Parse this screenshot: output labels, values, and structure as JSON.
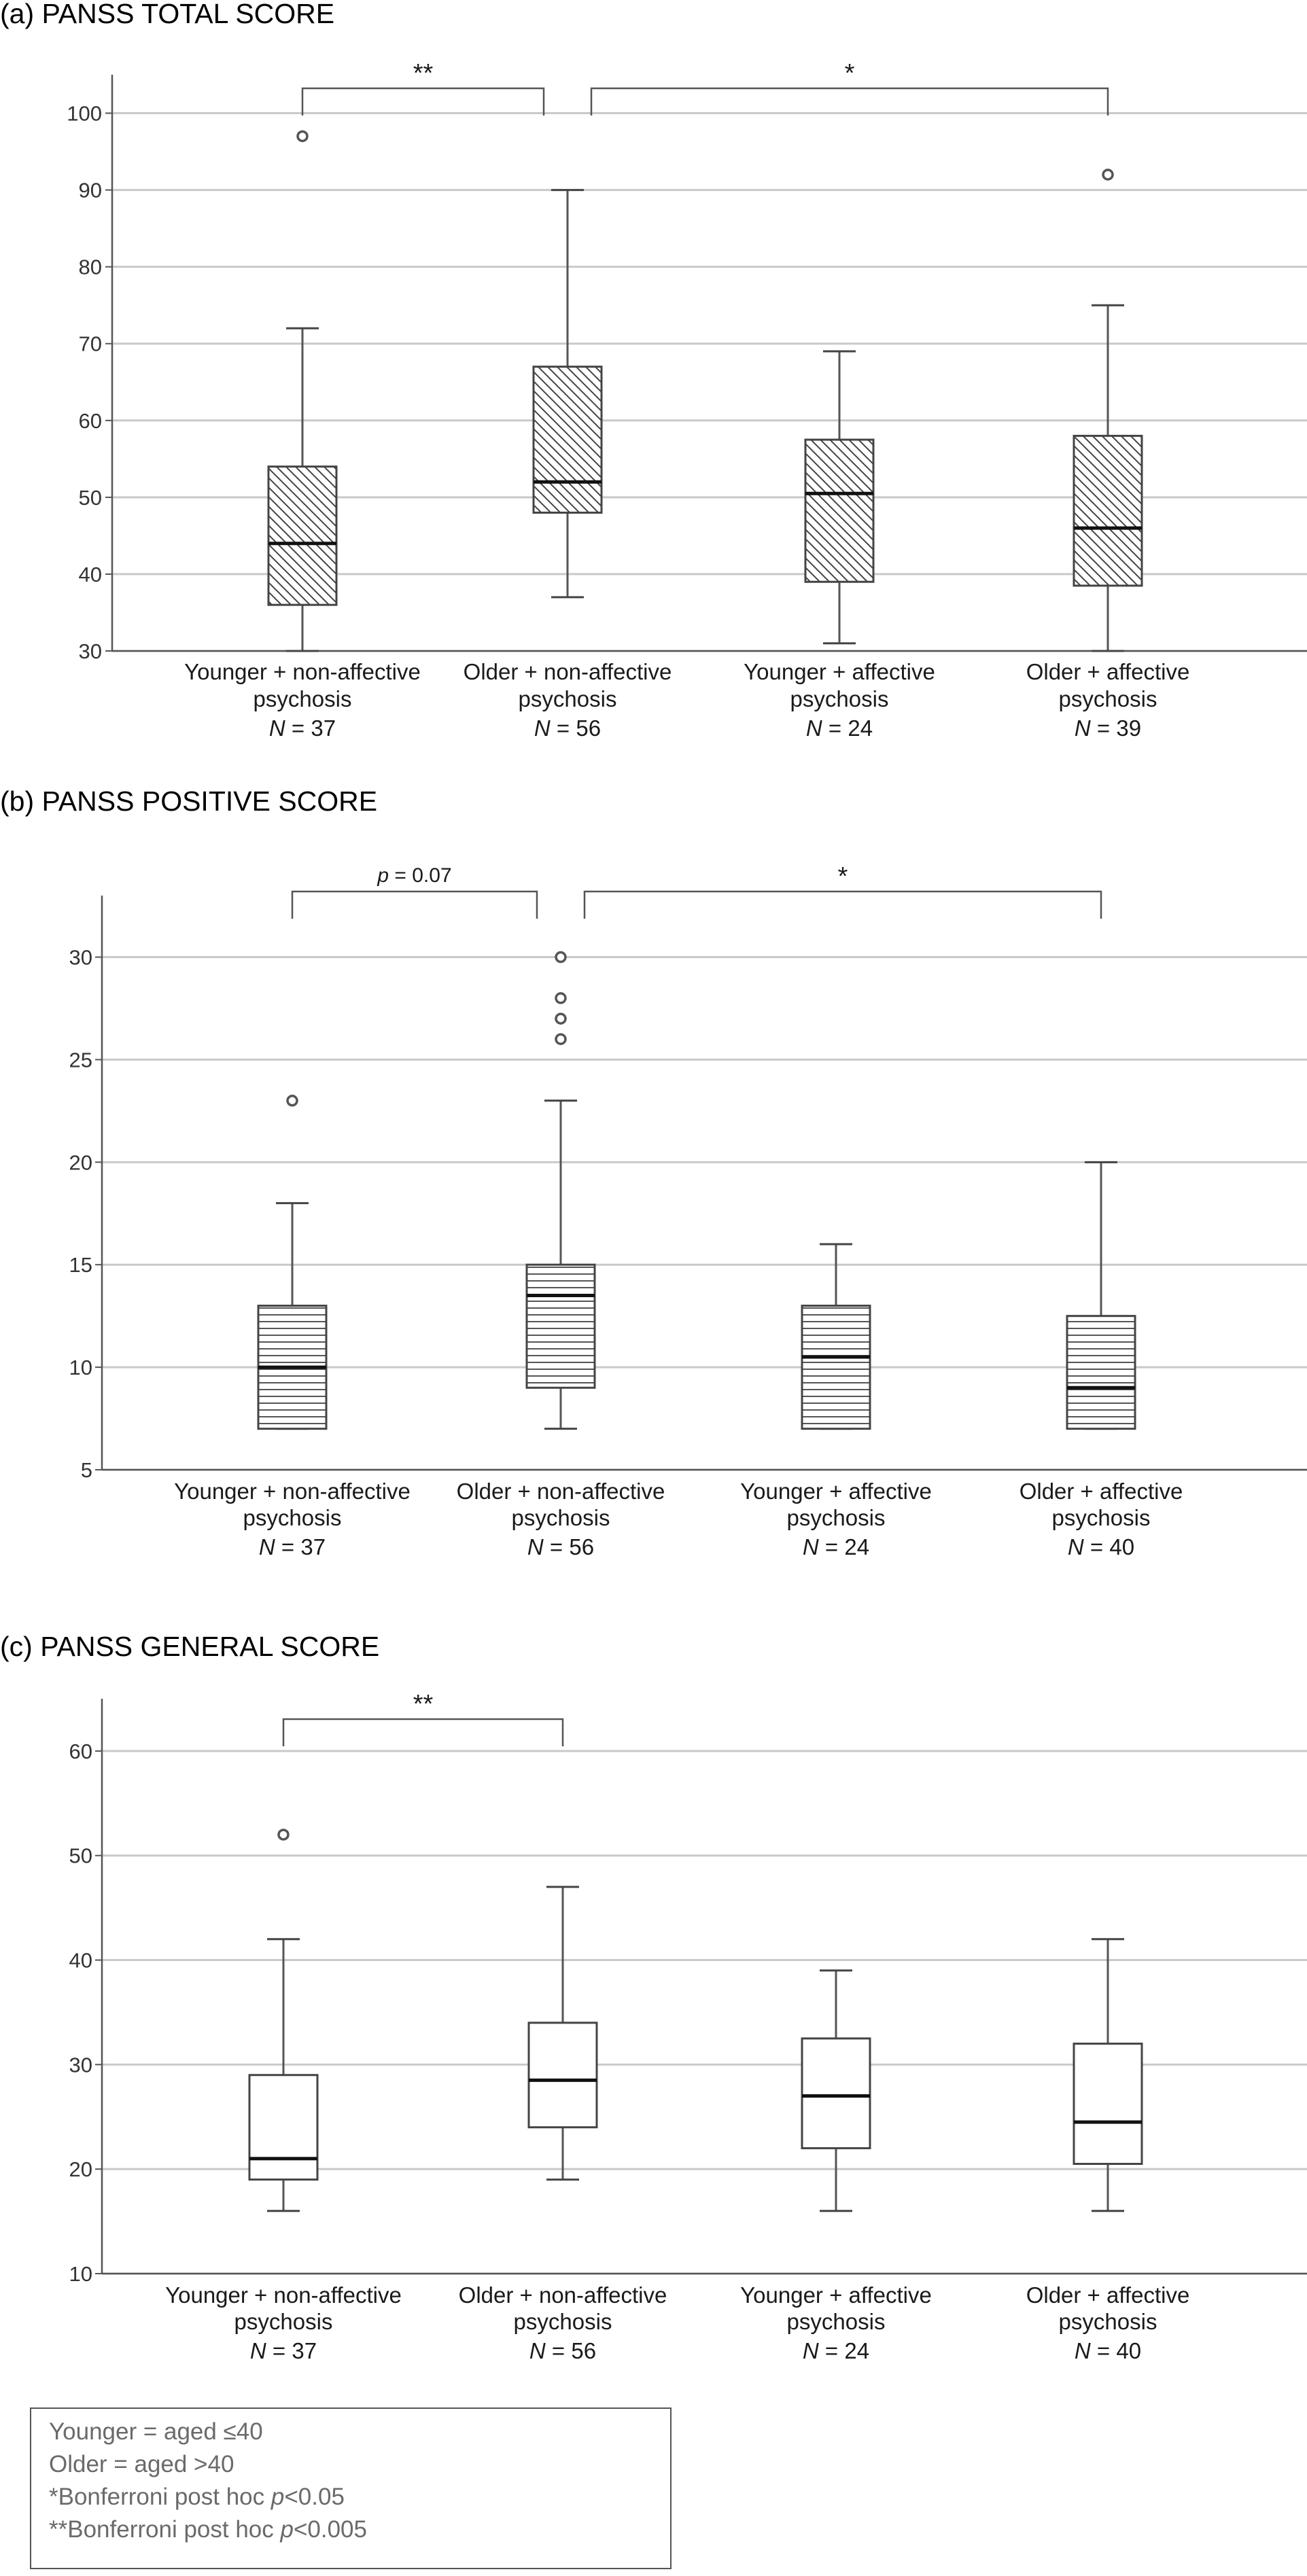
{
  "chart_data": [
    {
      "type": "box",
      "title": "(a) PANSS TOTAL SCORE",
      "ylim": [
        30,
        105
      ],
      "yticks": [
        30,
        40,
        50,
        60,
        70,
        80,
        90,
        100
      ],
      "fill": "diagonal-hatch",
      "groups": [
        {
          "line1": "Younger + non-affective",
          "line2": "psychosis",
          "n_prefix": "N",
          "n": "= 37",
          "min": 30,
          "q1": 36,
          "median": 44,
          "q3": 54,
          "max": 72,
          "outliers": [
            97
          ]
        },
        {
          "line1": "Older + non-affective",
          "line2": "psychosis",
          "n_prefix": "N",
          "n": "= 56",
          "min": 37,
          "q1": 48,
          "median": 52,
          "q3": 67,
          "max": 90,
          "outliers": []
        },
        {
          "line1": "Younger + affective",
          "line2": "psychosis",
          "n_prefix": "N",
          "n": "= 24",
          "min": 31,
          "q1": 39,
          "median": 50.5,
          "q3": 57.5,
          "max": 69,
          "outliers": []
        },
        {
          "line1": "Older + affective",
          "line2": "psychosis",
          "n_prefix": "N",
          "n": "= 39",
          "min": 30,
          "q1": 38.5,
          "median": 46,
          "q3": 58,
          "max": 75,
          "outliers": [
            92
          ]
        }
      ],
      "brackets": [
        {
          "from": 0,
          "to": 1,
          "label": "**"
        },
        {
          "from": 1,
          "to": 3,
          "label": "*"
        }
      ]
    },
    {
      "type": "box",
      "title": "(b) PANSS POSITIVE SCORE",
      "ylim": [
        5,
        33
      ],
      "yticks": [
        5,
        10,
        15,
        20,
        25,
        30
      ],
      "fill": "horizontal-hatch",
      "groups": [
        {
          "line1": "Younger + non-affective",
          "line2": "psychosis",
          "n_prefix": "N",
          "n": "= 37",
          "min": 7,
          "q1": 7,
          "median": 10,
          "q3": 13,
          "max": 18,
          "outliers": [
            23
          ]
        },
        {
          "line1": "Older + non-affective",
          "line2": "psychosis",
          "n_prefix": "N",
          "n": "= 56",
          "min": 7,
          "q1": 9,
          "median": 13.5,
          "q3": 15,
          "max": 23,
          "outliers": [
            26,
            27,
            28,
            30
          ]
        },
        {
          "line1": "Younger + affective",
          "line2": "psychosis",
          "n_prefix": "N",
          "n": "= 24",
          "min": 7,
          "q1": 7,
          "median": 10.5,
          "q3": 13,
          "max": 16,
          "outliers": []
        },
        {
          "line1": "Older + affective",
          "line2": "psychosis",
          "n_prefix": "N",
          "n": "= 40",
          "min": 7,
          "q1": 7,
          "median": 9,
          "q3": 12.5,
          "max": 20,
          "outliers": []
        }
      ],
      "brackets": [
        {
          "from": 0,
          "to": 1,
          "label_italic": "p",
          "label": " = 0.07"
        },
        {
          "from": 1,
          "to": 3,
          "label": "*"
        }
      ]
    },
    {
      "type": "box",
      "title": "(c) PANSS GENERAL SCORE",
      "ylim": [
        10,
        65
      ],
      "yticks": [
        10,
        20,
        30,
        40,
        50,
        60
      ],
      "fill": "none",
      "groups": [
        {
          "line1": "Younger + non-affective",
          "line2": "psychosis",
          "n_prefix": "N",
          "n": "= 37",
          "min": 16,
          "q1": 19,
          "median": 21,
          "q3": 29,
          "max": 42,
          "outliers": [
            52
          ]
        },
        {
          "line1": "Older + non-affective",
          "line2": "psychosis",
          "n_prefix": "N",
          "n": "= 56",
          "min": 19,
          "q1": 24,
          "median": 28.5,
          "q3": 34,
          "max": 47,
          "outliers": []
        },
        {
          "line1": "Younger + affective",
          "line2": "psychosis",
          "n_prefix": "N",
          "n": "= 24",
          "min": 16,
          "q1": 22,
          "median": 27,
          "q3": 32.5,
          "max": 39,
          "outliers": []
        },
        {
          "line1": "Older + affective",
          "line2": "psychosis",
          "n_prefix": "N",
          "n": "= 40",
          "min": 16,
          "q1": 20.5,
          "median": 24.5,
          "q3": 32,
          "max": 42,
          "outliers": []
        }
      ],
      "brackets": [
        {
          "from": 0,
          "to": 1,
          "label": "**"
        }
      ]
    }
  ],
  "legend": {
    "line1": "Younger = aged ≤40",
    "line2": "Older = aged >40",
    "line3_prefix": "*Bonferroni post hoc ",
    "line3_italic": "p",
    "line3_suffix": "<0.05",
    "line4_prefix": "**Bonferroni post hoc ",
    "line4_italic": "p",
    "line4_suffix": "<0.005"
  }
}
